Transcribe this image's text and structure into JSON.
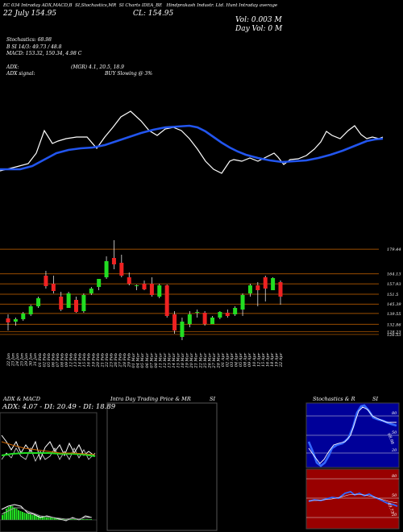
{
  "header": {
    "line1": [
      "EC 034 Intraday ADX,MACD,B",
      "SI,Stochastics,MR",
      "SI Charts IDEA_BE",
      "Hindprakash Industr. Ltd. Hunt Intraday average"
    ],
    "date": "22 July    154.95",
    "close": "CL: 154.95",
    "vol": "Vol: 0.003 M",
    "dayvol": "Day Vol: 0  M"
  },
  "indicators": {
    "stochastics": "Stochastics: 68.98",
    "si": "B  SI 14/3: 49.73 / 48.8",
    "macd": "MACD: 153.32,  150.34,  4.98  C",
    "adx": "ADX:",
    "adx_vals": "(MGR) 4.1, 20.5,  18.9",
    "adx_signal": "ADX  signal:",
    "signal_text": "BUY Slowing @ 3%"
  },
  "price_axis": [
    "179.44",
    "164.13",
    "157.93",
    "151.5",
    "145.39",
    "139.55",
    "132.86",
    "128.23",
    "126.53"
  ],
  "date_axis": [
    "22 Jan",
    "23 Jan",
    "24 Jan",
    "25 Jan",
    "29 Jan",
    "30 Jan",
    "31 Jan",
    "01 Feb",
    "02 Feb",
    "05 Feb",
    "06 Feb",
    "07 Feb",
    "08 Feb",
    "09 Feb",
    "12 Feb",
    "13 Feb",
    "14 Feb",
    "15 Feb",
    "16 Feb",
    "19 Feb",
    "20 Feb",
    "21 Feb",
    "22 Feb",
    "23 Feb",
    "26 Feb",
    "27 Feb",
    "28 Feb",
    "29 Feb",
    "01 Mar",
    "04 Mar",
    "05 Mar",
    "06 Mar",
    "07 Mar",
    "08 Mar",
    "11 Mar",
    "12 Mar",
    "13 Mar",
    "14 Mar",
    "15 Mar",
    "18 Mar",
    "19 Mar",
    "20 Mar",
    "21 Mar",
    "22 Mar",
    "25 Mar",
    "26 Mar",
    "27 Mar",
    "28 Mar",
    "01 Apr",
    "02 Apr",
    "03 Apr",
    "04 Apr",
    "05 Apr",
    "08 Apr",
    "09 Apr",
    "10 Apr",
    "12 Apr",
    "15 Apr",
    "16 Apr",
    "18 Apr",
    "19 Apr",
    "22 Apr"
  ],
  "panels": {
    "adx_title": "ADX  & MACD",
    "adx_values": "ADX: 4.07 - DI: 20.49 - DI: 18.89",
    "intraday_title": "Intra  Day Trading Price  & MR",
    "intraday_title2": "SI",
    "stoch_title": "Stochastics & R",
    "stoch_title2": "SI",
    "stoch_ticks": [
      "80",
      "50",
      "20"
    ],
    "rsi_ticks": [
      "80",
      "50",
      "20"
    ],
    "stoch_label": "68.98",
    "rsi_label": "49.73"
  },
  "colors": {
    "up": "#22dd22",
    "down": "#ee2222",
    "ma": "#2255ee",
    "price": "#ffffff",
    "level": "#cc6600",
    "stoch_bg": "#000099",
    "rsi_bg": "#990000"
  },
  "chart_data": {
    "type": "candlestick",
    "ylim": [
      122,
      186
    ],
    "candles": [
      {
        "o": 136.5,
        "h": 139.0,
        "l": 129.0,
        "c": 134.0
      },
      {
        "o": 134.5,
        "h": 137.0,
        "l": 132.0,
        "c": 136.0
      },
      {
        "o": 136.0,
        "h": 140.5,
        "l": 135.0,
        "c": 139.5
      },
      {
        "o": 139.0,
        "h": 145.0,
        "l": 138.0,
        "c": 144.0
      },
      {
        "o": 144.0,
        "h": 150.0,
        "l": 143.0,
        "c": 149.0
      },
      {
        "o": 163.0,
        "h": 166.0,
        "l": 155.0,
        "c": 156.5
      },
      {
        "o": 158.0,
        "h": 163.0,
        "l": 152.0,
        "c": 153.5
      },
      {
        "o": 150.0,
        "h": 153.0,
        "l": 141.0,
        "c": 142.0
      },
      {
        "o": 143.0,
        "h": 153.0,
        "l": 143.0,
        "c": 152.0
      },
      {
        "o": 148.0,
        "h": 150.0,
        "l": 140.0,
        "c": 140.5
      },
      {
        "o": 141.0,
        "h": 152.0,
        "l": 140.0,
        "c": 151.0
      },
      {
        "o": 152.0,
        "h": 156.0,
        "l": 151.0,
        "c": 155.0
      },
      {
        "o": 156.0,
        "h": 161.0,
        "l": 154.0,
        "c": 161.0
      },
      {
        "o": 162.0,
        "h": 175.0,
        "l": 161.0,
        "c": 172.0
      },
      {
        "o": 174.0,
        "h": 185.0,
        "l": 167.0,
        "c": 170.0
      },
      {
        "o": 171.0,
        "h": 176.0,
        "l": 162.0,
        "c": 163.0
      },
      {
        "o": 162.0,
        "h": 165.0,
        "l": 157.0,
        "c": 158.0
      },
      {
        "o": 157.0,
        "h": 157.5,
        "l": 154.0,
        "c": 157.0
      },
      {
        "o": 158.0,
        "h": 160.0,
        "l": 154.0,
        "c": 154.5
      },
      {
        "o": 158.0,
        "h": 162.0,
        "l": 150.0,
        "c": 151.0
      },
      {
        "o": 150.0,
        "h": 158.0,
        "l": 149.0,
        "c": 157.0
      },
      {
        "o": 157.0,
        "h": 157.5,
        "l": 137.0,
        "c": 138.0
      },
      {
        "o": 139.0,
        "h": 141.0,
        "l": 127.0,
        "c": 129.0
      },
      {
        "o": 125.0,
        "h": 137.0,
        "l": 123.0,
        "c": 134.5
      },
      {
        "o": 133.0,
        "h": 141.0,
        "l": 131.0,
        "c": 139.0
      },
      {
        "o": 140.0,
        "h": 142.0,
        "l": 137.0,
        "c": 140.5
      },
      {
        "o": 140.0,
        "h": 141.0,
        "l": 132.0,
        "c": 133.0
      },
      {
        "o": 133.0,
        "h": 138.0,
        "l": 133.0,
        "c": 137.0
      },
      {
        "o": 137.0,
        "h": 141.0,
        "l": 136.0,
        "c": 140.5
      },
      {
        "o": 140.0,
        "h": 142.0,
        "l": 137.0,
        "c": 138.0
      },
      {
        "o": 139.0,
        "h": 144.0,
        "l": 138.0,
        "c": 143.0
      },
      {
        "o": 142.0,
        "h": 152.0,
        "l": 138.0,
        "c": 151.0
      },
      {
        "o": 152.0,
        "h": 158.0,
        "l": 150.0,
        "c": 157.0
      },
      {
        "o": 157.0,
        "h": 159.0,
        "l": 144.0,
        "c": 154.0
      },
      {
        "o": 162.0,
        "h": 163.0,
        "l": 147.0,
        "c": 155.0
      },
      {
        "o": 154.0,
        "h": 162.0,
        "l": 154.0,
        "c": 161.5
      },
      {
        "o": 159.0,
        "h": 160.0,
        "l": 145.0,
        "c": 150.0
      }
    ]
  }
}
